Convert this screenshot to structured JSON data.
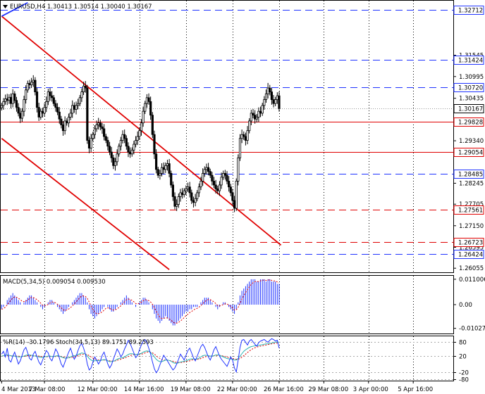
{
  "chart_data": {
    "type": "candlestick",
    "symbol_header": "EURUSD,H4  1.30413 1.30514 1.30040 1.30167",
    "price_axis": {
      "ylim": [
        1.2595,
        1.3295
      ],
      "ticks": [
        "1.32712",
        "1.31545",
        "1.31424",
        "1.30995",
        "1.30720",
        "1.30435",
        "1.30167",
        "1.29828",
        "1.29340",
        "1.29054",
        "1.28485",
        "1.28245",
        "1.27705",
        "1.27561",
        "1.27150",
        "1.26723",
        "1.26595",
        "1.26424",
        "1.26055"
      ],
      "tick_values": [
        1.32712,
        1.31545,
        1.31424,
        1.30995,
        1.3072,
        1.30435,
        1.30167,
        1.29828,
        1.2934,
        1.29054,
        1.28485,
        1.28245,
        1.27705,
        1.27561,
        1.2715,
        1.26723,
        1.26595,
        1.26424,
        1.26055
      ],
      "plain_ticks": [
        "1.31545",
        "1.30995",
        "1.30435",
        "1.29340",
        "1.28245",
        "1.27705",
        "1.27150",
        "1.26595",
        "1.26055"
      ],
      "current_price": "1.30167"
    },
    "levels": [
      {
        "label": "1.32712",
        "value": 1.32712,
        "color": "#1f33ff",
        "style": "dashed",
        "boxed": true
      },
      {
        "label": "1.31424",
        "value": 1.31424,
        "color": "#1f33ff",
        "style": "dashed",
        "boxed": true
      },
      {
        "label": "1.30720",
        "value": 1.3072,
        "color": "#1f33ff",
        "style": "dashed",
        "boxed": true
      },
      {
        "label": "1.29828",
        "value": 1.29828,
        "color": "#e00000",
        "style": "solid",
        "boxed": true
      },
      {
        "label": "1.29054",
        "value": 1.29054,
        "color": "#e00000",
        "style": "solid",
        "boxed": true
      },
      {
        "label": "1.28485",
        "value": 1.28485,
        "color": "#1f33ff",
        "style": "dashed",
        "boxed": true
      },
      {
        "label": "1.27561",
        "value": 1.27561,
        "color": "#e00000",
        "style": "dashed",
        "boxed": true
      },
      {
        "label": "1.26723",
        "value": 1.26723,
        "color": "#e00000",
        "style": "dashed",
        "boxed": true
      },
      {
        "label": "1.26424",
        "value": 1.26424,
        "color": "#1f33ff",
        "style": "dashed",
        "boxed": true
      }
    ],
    "trend_lines": [
      {
        "color": "#e00000",
        "from": [
          0,
          1.3255
        ],
        "to": [
          150,
          1.2665
        ]
      },
      {
        "color": "#e00000",
        "from": [
          0,
          1.294
        ],
        "to": [
          90,
          1.2602
        ]
      },
      {
        "color": "#1f33ff",
        "from": [
          0,
          1.3255
        ],
        "to": [
          14,
          1.329
        ]
      }
    ],
    "time_axis": {
      "bars": 150,
      "labels": [
        "4 Mar 2013",
        "7 Mar 08:00",
        "12 Mar 00:00",
        "14 Mar 16:00",
        "19 Mar 08:00",
        "22 Mar 00:00",
        "26 Mar 16:00",
        "29 Mar 08:00",
        "3 Apr 00:00",
        "5 Apr 16:00"
      ],
      "label_bars": [
        0,
        23,
        49,
        74,
        99,
        124,
        149,
        173,
        197,
        221
      ],
      "scale_bars": 243
    },
    "candles_close": [
      1.3025,
      1.3035,
      1.3042,
      1.3038,
      1.3046,
      1.303,
      1.3055,
      1.3038,
      1.302,
      1.3005,
      1.2992,
      1.301,
      1.304,
      1.3065,
      1.3082,
      1.3078,
      1.3085,
      1.309,
      1.306,
      1.302,
      1.2995,
      1.301,
      1.3005,
      1.302,
      1.3035,
      1.306,
      1.305,
      1.3045,
      1.303,
      1.302,
      1.3008,
      1.299,
      1.2975,
      1.296,
      1.2985,
      1.298,
      1.2995,
      1.3005,
      1.3025,
      1.3015,
      1.3025,
      1.303,
      1.3045,
      1.306,
      1.3075,
      1.307,
      1.2935,
      1.2915,
      1.294,
      1.295,
      1.2965,
      1.2975,
      1.298,
      1.297,
      1.2965,
      1.2945,
      1.2935,
      1.292,
      1.2905,
      1.289,
      1.287,
      1.288,
      1.29,
      1.292,
      1.2935,
      1.295,
      1.294,
      1.292,
      1.2905,
      1.29,
      1.291,
      1.2925,
      1.2935,
      1.2945,
      1.296,
      1.298,
      1.301,
      1.303,
      1.3045,
      1.3035,
      1.3,
      1.295,
      1.29,
      1.286,
      1.2845,
      1.285,
      1.2865,
      1.286,
      1.287,
      1.2875,
      1.285,
      1.282,
      1.279,
      1.2765,
      1.277,
      1.279,
      1.28,
      1.2795,
      1.2805,
      1.281,
      1.2815,
      1.28,
      1.278,
      1.2775,
      1.2785,
      1.28,
      1.2815,
      1.283,
      1.285,
      1.286,
      1.2865,
      1.2855,
      1.2845,
      1.283,
      1.282,
      1.281,
      1.2805,
      1.282,
      1.284,
      1.285,
      1.2845,
      1.283,
      1.2815,
      1.28,
      1.278,
      1.276,
      1.283,
      1.289,
      1.294,
      1.295,
      1.2945,
      1.2935,
      1.296,
      1.2985,
      1.3005,
      1.3,
      1.299,
      1.2995,
      1.301,
      1.3005,
      1.3025,
      1.304,
      1.3055,
      1.307,
      1.306,
      1.304,
      1.303,
      1.304,
      1.305,
      1.3017
    ],
    "macd_panel": {
      "header": "MACD(5,34,5) 0.009054 0.009530",
      "ticks": [
        "0.011006",
        "0.00",
        "-0.010271"
      ],
      "tick_values": [
        0.011006,
        0.0,
        -0.010271
      ],
      "ylim": [
        -0.0125,
        0.0125
      ],
      "histogram": [
        -0.002,
        -0.001,
        0.0,
        0.002,
        0.003,
        0.004,
        0.005,
        0.004,
        0.003,
        0.002,
        0.001,
        0.0,
        0.001,
        0.002,
        0.003,
        0.004,
        0.004,
        0.003,
        0.002,
        0.001,
        0.0,
        -0.001,
        -0.002,
        -0.001,
        0.0,
        0.001,
        0.002,
        0.002,
        0.001,
        0.0,
        -0.001,
        -0.002,
        -0.003,
        -0.004,
        -0.003,
        -0.002,
        -0.001,
        0.0,
        0.001,
        0.002,
        0.003,
        0.004,
        0.005,
        0.005,
        0.004,
        0.003,
        0.001,
        -0.002,
        -0.004,
        -0.005,
        -0.006,
        -0.005,
        -0.004,
        -0.003,
        -0.002,
        -0.001,
        0.0,
        -0.001,
        -0.002,
        -0.003,
        -0.003,
        -0.002,
        -0.001,
        0.0,
        0.001,
        0.002,
        0.003,
        0.004,
        0.003,
        0.002,
        0.001,
        0.0,
        -0.001,
        0.0,
        0.001,
        0.002,
        0.003,
        0.003,
        0.002,
        0.001,
        0.0,
        -0.002,
        -0.004,
        -0.006,
        -0.007,
        -0.008,
        -0.007,
        -0.006,
        -0.005,
        -0.006,
        -0.007,
        -0.008,
        -0.009,
        -0.009,
        -0.008,
        -0.007,
        -0.006,
        -0.005,
        -0.004,
        -0.003,
        -0.003,
        -0.002,
        -0.002,
        -0.001,
        -0.001,
        -0.001,
        0.0,
        0.001,
        0.002,
        0.003,
        0.003,
        0.003,
        0.002,
        0.001,
        0.0,
        -0.001,
        -0.002,
        -0.001,
        0.0,
        0.001,
        0.001,
        0.0,
        -0.001,
        -0.002,
        -0.003,
        -0.004,
        -0.002,
        0.001,
        0.004,
        0.006,
        0.007,
        0.008,
        0.009,
        0.01,
        0.011,
        0.011,
        0.011,
        0.01,
        0.01,
        0.011,
        0.011,
        0.011,
        0.01,
        0.011,
        0.011,
        0.01,
        0.01,
        0.01,
        0.009,
        0.009
      ]
    },
    "osc_panel": {
      "header": "%R(14) -30.1796 Stoch(34,5,13) 89.1751 89.2593",
      "ticks": [
        "80",
        "20",
        "-20",
        "-80"
      ],
      "tick_values": [
        85,
        50,
        10,
        -8
      ],
      "ylim": [
        -12,
        100
      ],
      "wpr": [
        55,
        62,
        48,
        70,
        40,
        35,
        50,
        60,
        45,
        30,
        38,
        52,
        66,
        72,
        58,
        44,
        40,
        55,
        62,
        48,
        35,
        28,
        40,
        52,
        64,
        58,
        44,
        38,
        52,
        68,
        60,
        45,
        30,
        22,
        35,
        48,
        60,
        70,
        55,
        42,
        50,
        64,
        76,
        82,
        70,
        55,
        30,
        15,
        20,
        35,
        48,
        40,
        30,
        38,
        52,
        60,
        45,
        30,
        20,
        28,
        42,
        55,
        68,
        60,
        48,
        55,
        68,
        78,
        90,
        82,
        70,
        58,
        46,
        52,
        66,
        78,
        88,
        92,
        84,
        70,
        55,
        35,
        18,
        8,
        15,
        28,
        40,
        52,
        45,
        38,
        30,
        22,
        15,
        20,
        30,
        42,
        55,
        48,
        40,
        52,
        64,
        70,
        58,
        46,
        38,
        50,
        62,
        74,
        80,
        72,
        60,
        48,
        40,
        52,
        66,
        74,
        62,
        50,
        42,
        36,
        30,
        24,
        35,
        48,
        40,
        20,
        10,
        40,
        72,
        90,
        92,
        85,
        78,
        88,
        92,
        86,
        80,
        75,
        84,
        88,
        90,
        92,
        88,
        85,
        90,
        94,
        92,
        88,
        90,
        70
      ],
      "stoch_main": [
        50,
        51,
        52,
        53,
        52,
        51,
        50,
        50,
        49,
        48,
        48,
        49,
        50,
        52,
        53,
        53,
        52,
        51,
        50,
        49,
        48,
        47,
        47,
        48,
        49,
        50,
        50,
        49,
        49,
        50,
        51,
        50,
        48,
        46,
        45,
        45,
        46,
        48,
        50,
        51,
        52,
        54,
        56,
        58,
        57,
        55,
        50,
        44,
        40,
        38,
        38,
        39,
        39,
        39,
        40,
        41,
        40,
        38,
        36,
        36,
        37,
        39,
        42,
        44,
        45,
        46,
        48,
        51,
        54,
        56,
        56,
        55,
        54,
        54,
        55,
        57,
        60,
        62,
        63,
        62,
        59,
        54,
        48,
        42,
        38,
        36,
        36,
        38,
        40,
        40,
        39,
        37,
        34,
        32,
        32,
        33,
        35,
        36,
        37,
        38,
        40,
        42,
        43,
        43,
        42,
        43,
        45,
        48,
        51,
        52,
        52,
        51,
        50,
        50,
        51,
        53,
        53,
        52,
        50,
        48,
        46,
        44,
        43,
        43,
        42,
        40,
        40,
        44,
        50,
        56,
        62,
        66,
        69,
        72,
        74,
        75,
        76,
        76,
        77,
        78,
        79,
        80,
        81,
        81,
        82,
        83,
        84,
        85,
        86,
        85
      ],
      "stoch_signal": [
        50,
        50,
        50,
        51,
        51,
        51,
        51,
        50,
        50,
        50,
        49,
        49,
        49,
        50,
        51,
        51,
        51,
        51,
        51,
        50,
        50,
        49,
        49,
        48,
        48,
        49,
        49,
        49,
        49,
        49,
        50,
        50,
        49,
        48,
        47,
        46,
        46,
        46,
        47,
        48,
        49,
        51,
        53,
        54,
        55,
        55,
        54,
        51,
        48,
        45,
        43,
        41,
        40,
        40,
        40,
        40,
        40,
        39,
        38,
        38,
        37,
        38,
        39,
        41,
        42,
        44,
        45,
        47,
        49,
        51,
        53,
        54,
        54,
        54,
        54,
        55,
        56,
        58,
        60,
        61,
        60,
        58,
        55,
        51,
        47,
        44,
        41,
        40,
        40,
        40,
        39,
        38,
        37,
        35,
        34,
        34,
        34,
        34,
        35,
        36,
        37,
        38,
        40,
        41,
        41,
        42,
        42,
        44,
        46,
        48,
        49,
        50,
        50,
        50,
        51,
        51,
        52,
        52,
        51,
        50,
        49,
        48,
        46,
        45,
        44,
        43,
        42,
        42,
        44,
        47,
        51,
        55,
        59,
        63,
        66,
        69,
        71,
        73,
        74,
        75,
        76,
        77,
        78,
        79,
        80,
        81,
        82,
        82,
        83,
        84
      ]
    },
    "colors": {
      "bull": "#000000",
      "bear": "#000000",
      "macd_hist": "#1f33ff",
      "macd_signal": "#e00000",
      "wpr": "#1f33ff",
      "stoch_main": "#2bb3b3",
      "stoch_signal": "#e00000",
      "grid": "#000000"
    }
  }
}
